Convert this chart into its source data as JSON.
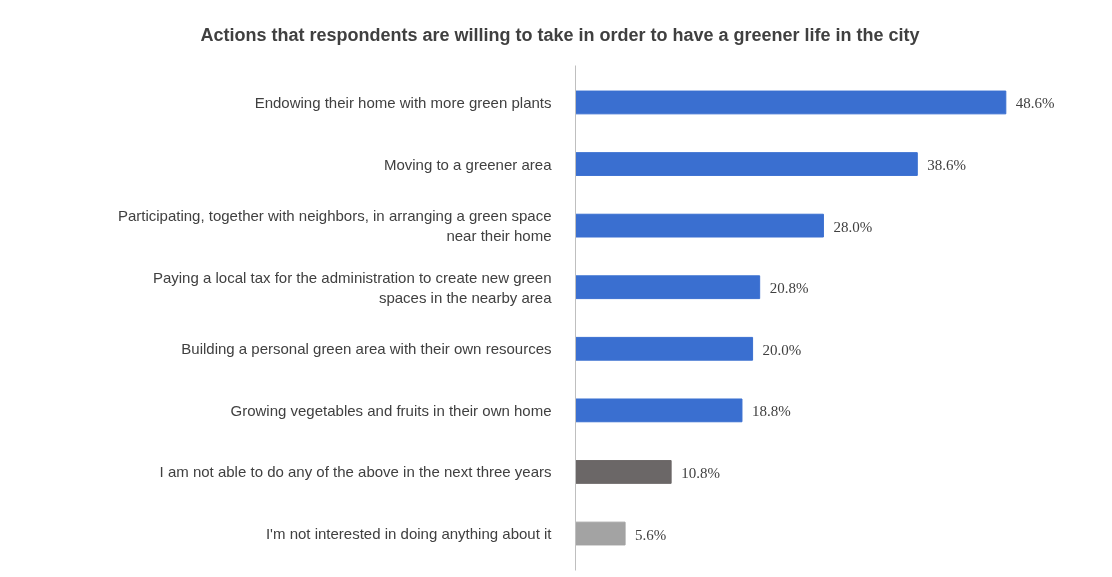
{
  "chart_data": {
    "type": "bar",
    "orientation": "horizontal",
    "title": "Actions that respondents are willing to take in order to have a greener life in the city",
    "categories": [
      "Endowing their home with more green plants",
      "Moving to a greener area",
      "Participating, together with neighbors, in arranging a green space near their home",
      "Paying a local tax for the administration to create new green spaces in the nearby area",
      "Building a personal green area with their own resources",
      "Growing vegetables and fruits in their own home",
      "I am not able to do any of the above in the next three years",
      "I'm not interested in doing anything about it"
    ],
    "values": [
      48.6,
      38.6,
      28.0,
      20.8,
      20.0,
      18.8,
      10.8,
      5.6
    ],
    "colors": [
      "#3a6fd0",
      "#3a6fd0",
      "#3a6fd0",
      "#3a6fd0",
      "#3a6fd0",
      "#3a6fd0",
      "#6b6767",
      "#a3a3a3"
    ],
    "value_labels": [
      "48.6%",
      "38.6%",
      "28.0%",
      "20.8%",
      "20.0%",
      "18.8%",
      "10.8%",
      "5.6%"
    ],
    "grid": false
  }
}
